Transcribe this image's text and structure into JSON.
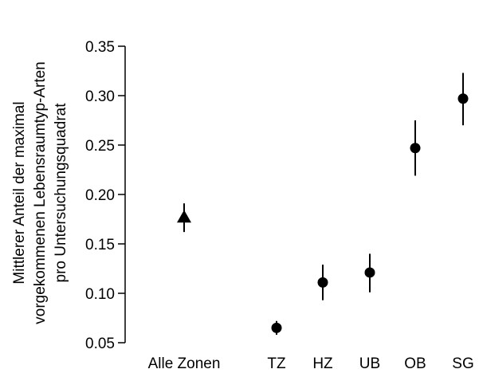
{
  "chart_data": {
    "type": "scatter",
    "title": "",
    "xlabel": "",
    "ylabel_lines": [
      "Mittlerer Anteil der maximal",
      "vorgekommenen Lebensraumtyp-Arten",
      "pro Untersuchungsquadrat"
    ],
    "ylim": [
      0.05,
      0.35
    ],
    "yticks": [
      "0.05",
      "0.10",
      "0.15",
      "0.20",
      "0.25",
      "0.30",
      "0.35"
    ],
    "grid": false,
    "categories": [
      "Alle Zonen",
      "TZ",
      "HZ",
      "UB",
      "OB",
      "SG"
    ],
    "points": [
      {
        "category": "Alle Zonen",
        "marker": "triangle",
        "value": 0.177,
        "low": 0.162,
        "high": 0.191
      },
      {
        "category": "TZ",
        "marker": "circle",
        "value": 0.065,
        "low": 0.058,
        "high": 0.072
      },
      {
        "category": "HZ",
        "marker": "circle",
        "value": 0.111,
        "low": 0.093,
        "high": 0.129
      },
      {
        "category": "UB",
        "marker": "circle",
        "value": 0.121,
        "low": 0.101,
        "high": 0.14
      },
      {
        "category": "OB",
        "marker": "circle",
        "value": 0.247,
        "low": 0.219,
        "high": 0.275
      },
      {
        "category": "SG",
        "marker": "circle",
        "value": 0.297,
        "low": 0.27,
        "high": 0.323
      }
    ],
    "color": "#000000"
  }
}
